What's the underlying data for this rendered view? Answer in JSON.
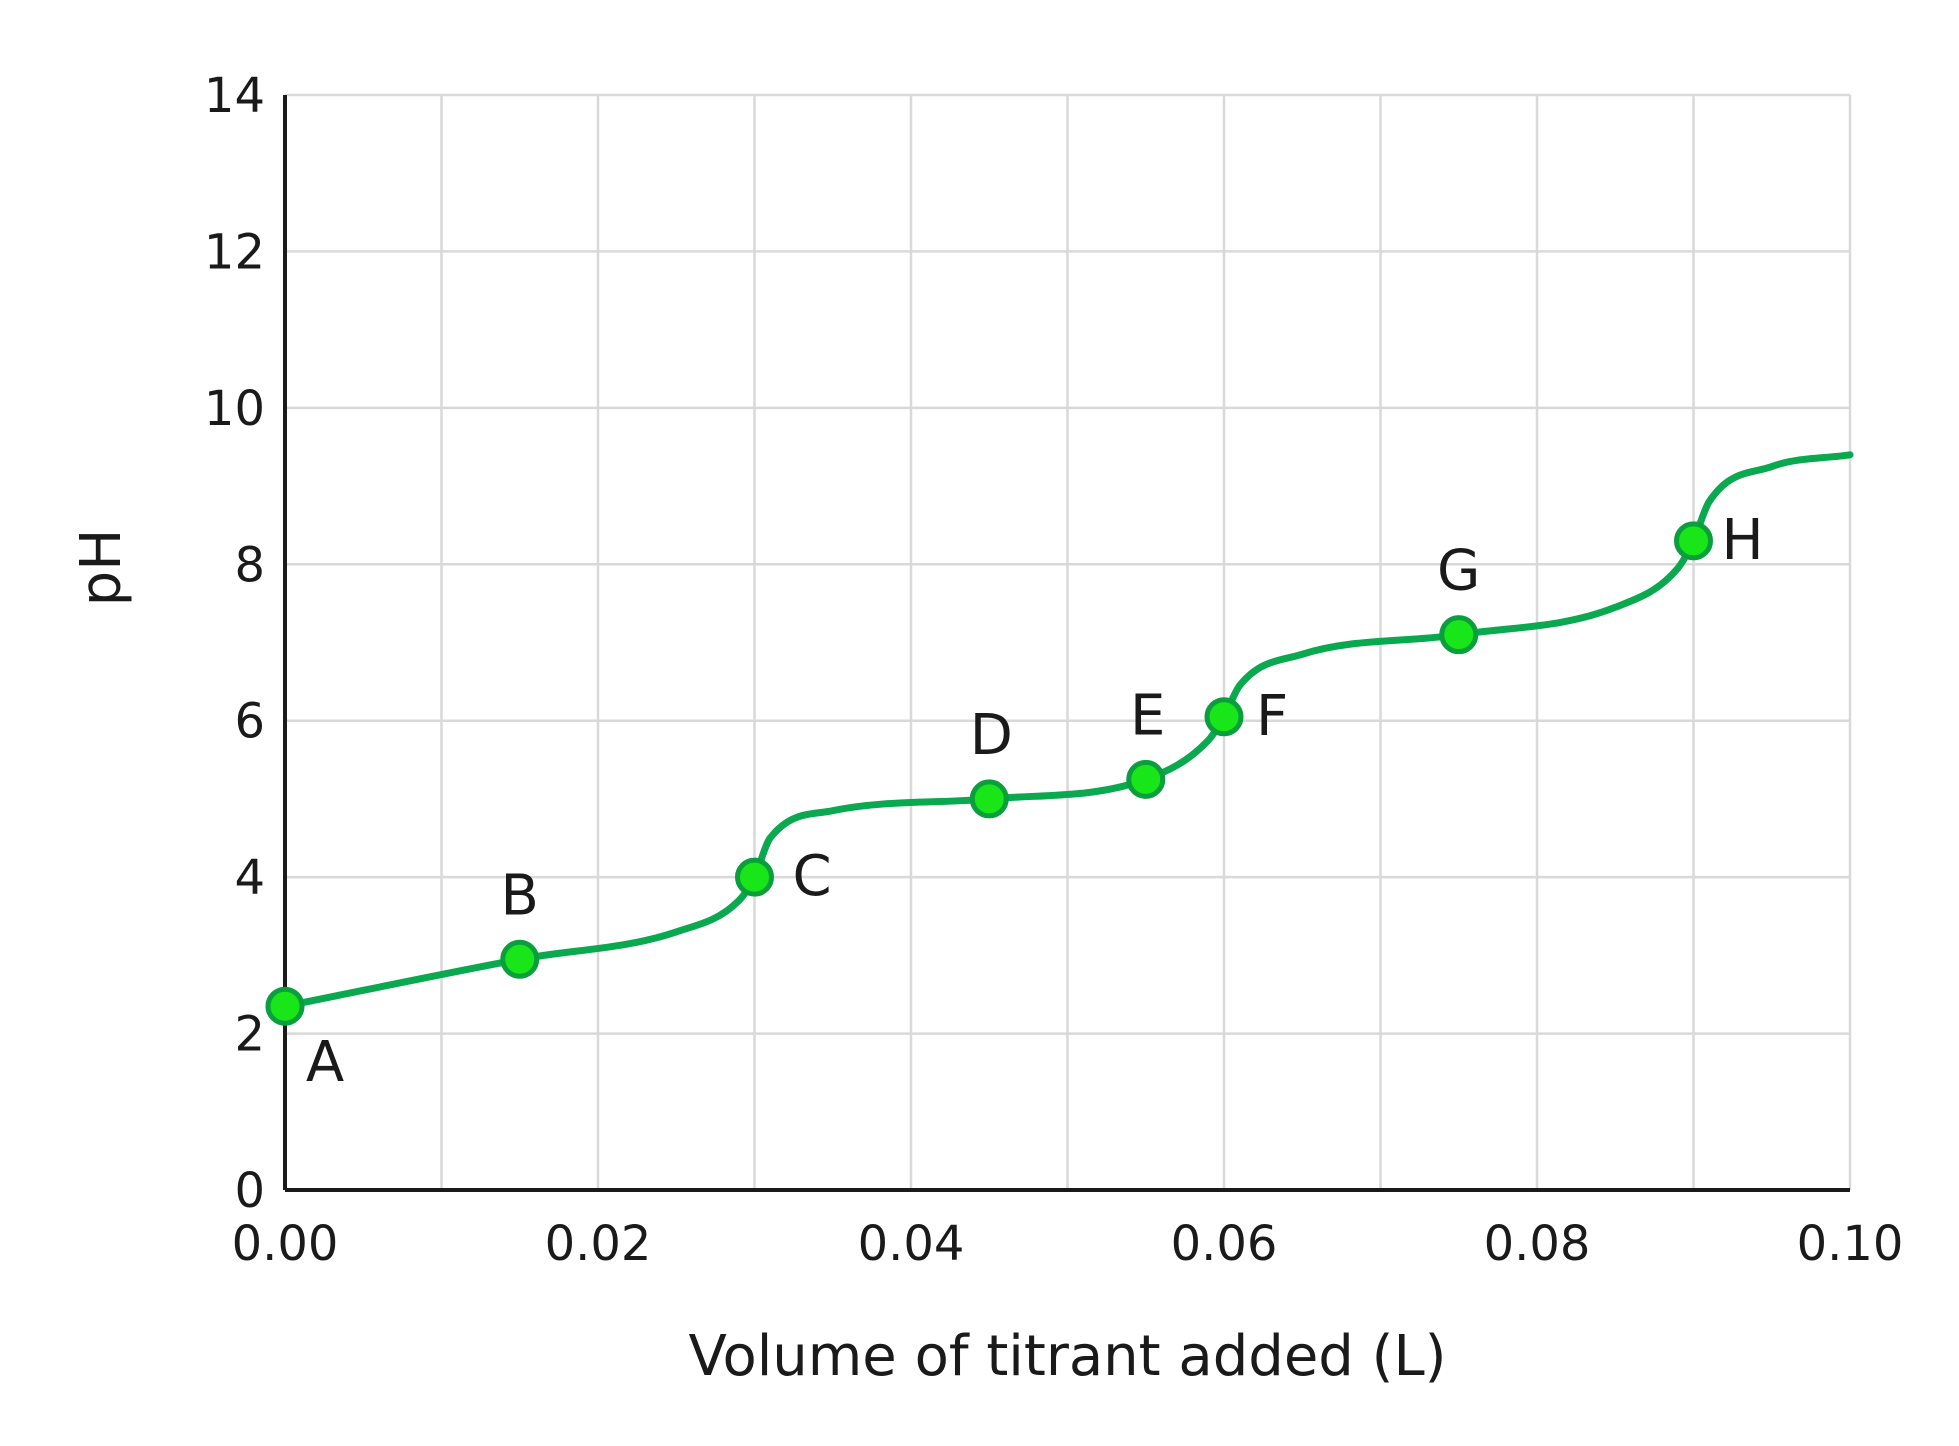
{
  "chart_data": {
    "type": "line",
    "title": "",
    "xlabel": "Volume of titrant added (L)",
    "ylabel": "pH",
    "xlim": [
      0,
      0.1
    ],
    "ylim": [
      0,
      14
    ],
    "x_ticks": [
      "0.00",
      "0.02",
      "0.04",
      "0.06",
      "0.08",
      "0.10"
    ],
    "y_ticks": [
      "0",
      "2",
      "4",
      "6",
      "8",
      "10",
      "12",
      "14"
    ],
    "grid": true,
    "legend": "none",
    "colors": {
      "curve": "#0aa84f",
      "point_fill": "#19e619",
      "point_stroke": "#0a9e3c"
    },
    "curve": {
      "x": [
        0.0,
        0.015,
        0.025,
        0.029,
        0.03,
        0.031,
        0.035,
        0.045,
        0.055,
        0.059,
        0.06,
        0.061,
        0.065,
        0.075,
        0.085,
        0.089,
        0.09,
        0.091,
        0.095,
        0.1
      ],
      "y": [
        2.35,
        2.95,
        3.3,
        3.7,
        4.0,
        4.5,
        4.85,
        5.0,
        5.25,
        5.75,
        6.05,
        6.45,
        6.85,
        7.1,
        7.45,
        7.95,
        8.3,
        8.8,
        9.25,
        9.4
      ]
    },
    "points": [
      {
        "label": "A",
        "x": 0.0,
        "y": 2.35
      },
      {
        "label": "B",
        "x": 0.015,
        "y": 2.95
      },
      {
        "label": "C",
        "x": 0.03,
        "y": 4.0
      },
      {
        "label": "D",
        "x": 0.045,
        "y": 5.0
      },
      {
        "label": "E",
        "x": 0.055,
        "y": 5.25
      },
      {
        "label": "F",
        "x": 0.06,
        "y": 6.05
      },
      {
        "label": "G",
        "x": 0.075,
        "y": 7.1
      },
      {
        "label": "H",
        "x": 0.09,
        "y": 8.3
      }
    ]
  }
}
